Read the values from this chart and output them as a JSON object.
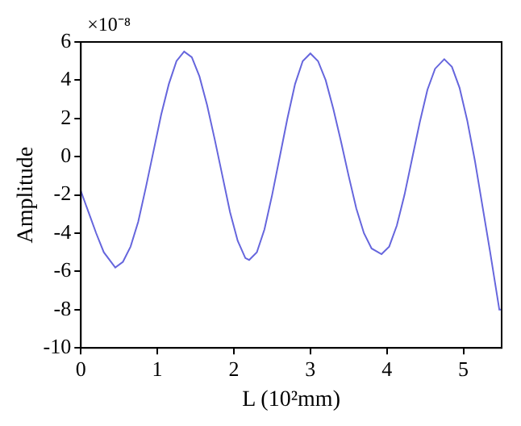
{
  "chart_data": {
    "type": "line",
    "xlabel": "L (10²mm)",
    "ylabel": "Amplitude",
    "annotations": [
      "×10⁻⁸"
    ],
    "x": [
      0,
      0.1,
      0.2,
      0.3,
      0.45,
      0.55,
      0.65,
      0.75,
      0.85,
      0.95,
      1.05,
      1.15,
      1.25,
      1.35,
      1.45,
      1.55,
      1.65,
      1.75,
      1.85,
      1.95,
      2.05,
      2.15,
      2.2,
      2.3,
      2.4,
      2.5,
      2.6,
      2.7,
      2.8,
      2.9,
      3.0,
      3.1,
      3.2,
      3.3,
      3.4,
      3.5,
      3.6,
      3.7,
      3.8,
      3.93,
      4.03,
      4.13,
      4.23,
      4.33,
      4.43,
      4.53,
      4.63,
      4.75,
      4.85,
      4.95,
      5.05,
      5.15,
      5.25,
      5.35,
      5.47,
      5.5
    ],
    "series": [
      {
        "color": "#6666dd",
        "values": [
          -1.8,
          -2.9,
          -4.0,
          -5.0,
          -5.8,
          -5.5,
          -4.7,
          -3.4,
          -1.6,
          0.3,
          2.2,
          3.8,
          5.0,
          5.5,
          5.2,
          4.2,
          2.7,
          0.9,
          -1.0,
          -2.9,
          -4.4,
          -5.3,
          -5.4,
          -5.0,
          -3.8,
          -2.0,
          0.0,
          2.0,
          3.8,
          5.0,
          5.4,
          5.0,
          4.0,
          2.5,
          0.8,
          -1.0,
          -2.7,
          -4.0,
          -4.8,
          -5.1,
          -4.7,
          -3.6,
          -2.0,
          -0.1,
          1.8,
          3.5,
          4.6,
          5.1,
          4.7,
          3.6,
          1.9,
          -0.2,
          -2.6,
          -5.0,
          -8.0,
          -8.0
        ]
      }
    ],
    "xlim": [
      0,
      5.5
    ],
    "ylim": [
      -10,
      6
    ],
    "xticks": [
      0,
      1,
      2,
      3,
      4,
      5
    ],
    "yticks": [
      -10,
      -8,
      -6,
      -4,
      -2,
      0,
      2,
      4,
      6
    ]
  }
}
